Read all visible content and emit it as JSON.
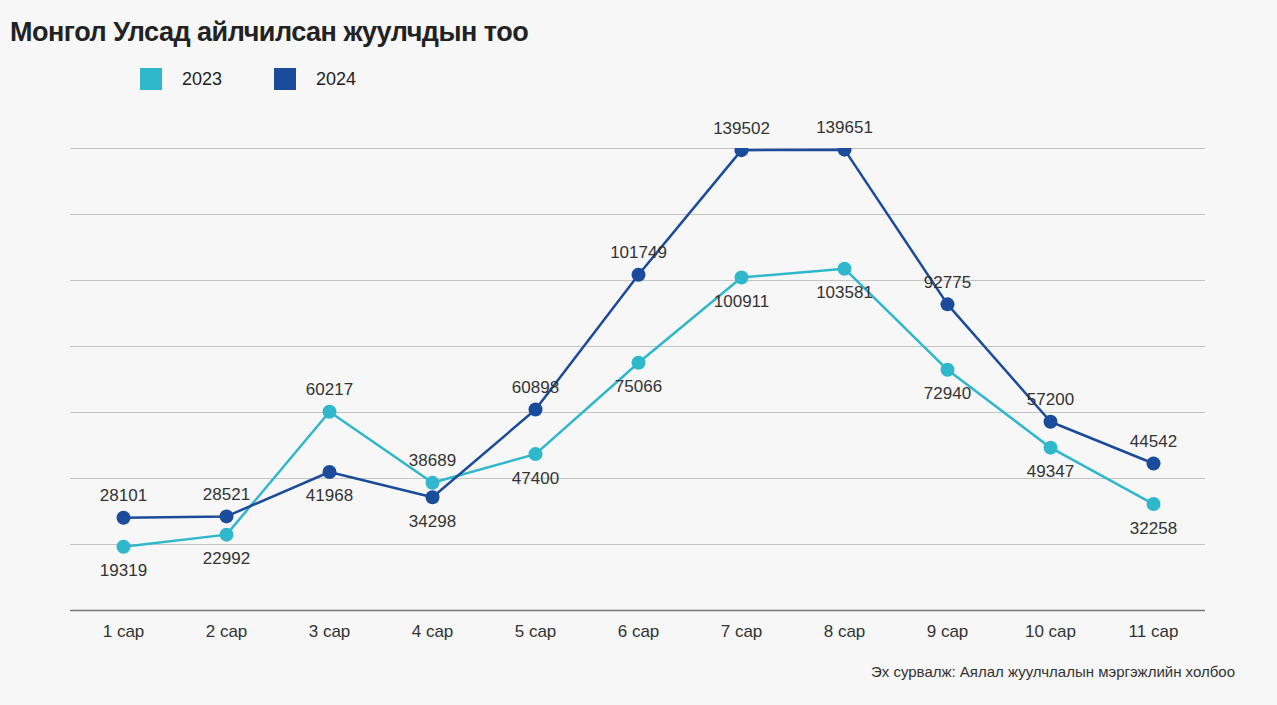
{
  "chart_data": {
    "type": "line",
    "title": "Монгол Улсад айлчилсан жуулчдын тоо",
    "caption": "Эх сурвалж: Аялал жуулчлалын мэргэжлийн холбоо",
    "categories": [
      "1 сар",
      "2 сар",
      "3 сар",
      "4 сар",
      "5 сар",
      "6 сар",
      "7 сар",
      "8 сар",
      "9 сар",
      "10 сар",
      "11 сар"
    ],
    "series": [
      {
        "name": "2023",
        "color": "#2fb7cb",
        "values": [
          19319,
          22992,
          60217,
          38689,
          47400,
          75066,
          100911,
          103581,
          72940,
          49347,
          32258
        ]
      },
      {
        "name": "2024",
        "color": "#1b4b9b",
        "values": [
          28101,
          28521,
          41968,
          34298,
          60898,
          101749,
          139502,
          139651,
          92775,
          57200,
          44542
        ]
      }
    ],
    "ylim": [
      0,
      140000
    ],
    "yticks": [
      0,
      20000,
      40000,
      60000,
      80000,
      100000,
      120000,
      140000
    ],
    "grid": true,
    "data_labels": true,
    "tick_labels": "x",
    "legend": "top-left",
    "marker": "circle"
  }
}
